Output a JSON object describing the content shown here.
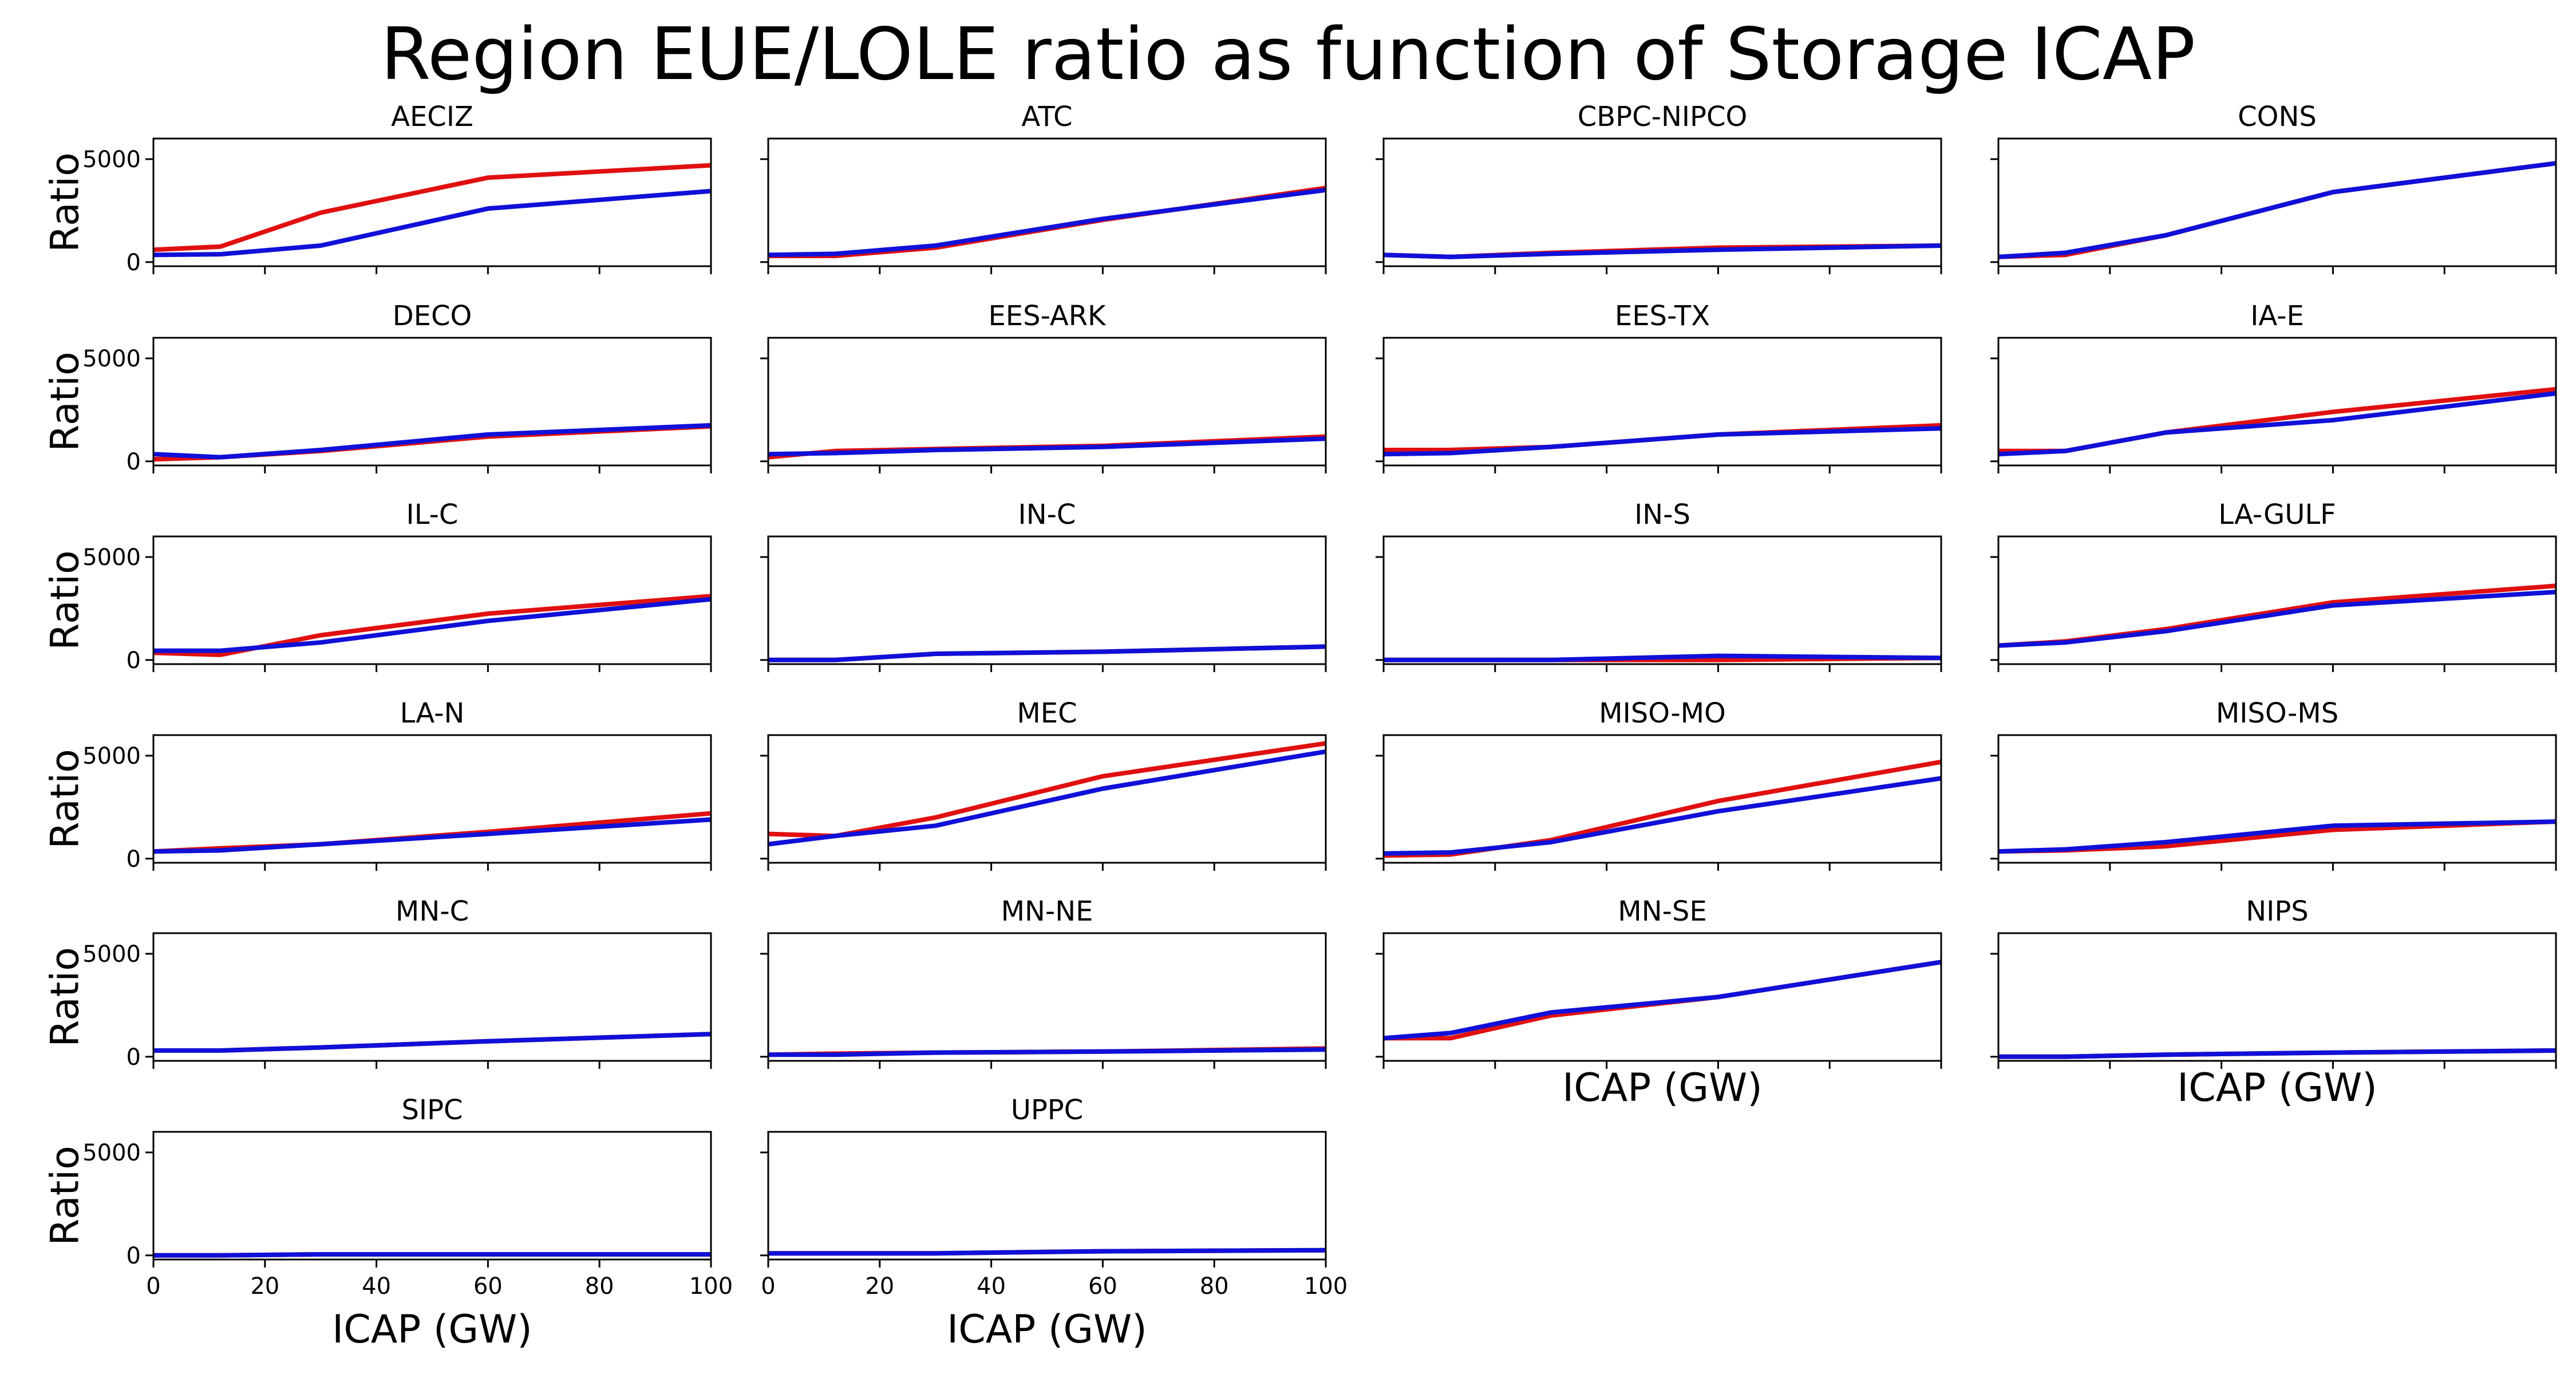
{
  "figure": {
    "title": "Region EUE/LOLE ratio as function of Storage ICAP"
  },
  "colors": {
    "series_a": "#e01010",
    "series_b": "#1010d8"
  },
  "chart_data": {
    "type": "line",
    "title": "Region EUE/LOLE ratio as function of Storage ICAP",
    "xlabel": "ICAP (GW)",
    "ylabel": "Ratio",
    "xlim": [
      0,
      100
    ],
    "ylim": [
      -200,
      6000
    ],
    "x": [
      0,
      12,
      30,
      60,
      100
    ],
    "xticks": [
      "0",
      "20",
      "40",
      "60",
      "80",
      "100"
    ],
    "xtick_values": [
      0,
      20,
      40,
      60,
      80,
      100
    ],
    "yticks": [
      "0",
      "5000"
    ],
    "ytick_values": [
      0,
      5000
    ],
    "grid": false,
    "columns": 4,
    "panels": [
      {
        "name": "AECIZ",
        "red": [
          600,
          750,
          2400,
          4100,
          4700
        ],
        "blue": [
          350,
          380,
          800,
          2600,
          3450
        ]
      },
      {
        "name": "ATC",
        "red": [
          300,
          300,
          700,
          2050,
          3600
        ],
        "blue": [
          350,
          400,
          800,
          2100,
          3500
        ]
      },
      {
        "name": "CBPC-NIPCO",
        "red": [
          350,
          250,
          450,
          700,
          800
        ],
        "blue": [
          350,
          250,
          400,
          600,
          800
        ]
      },
      {
        "name": "CONS",
        "red": [
          250,
          350,
          1300,
          3400,
          4800
        ],
        "blue": [
          250,
          450,
          1300,
          3400,
          4800
        ]
      },
      {
        "name": "DECO",
        "red": [
          100,
          200,
          500,
          1200,
          1700
        ],
        "blue": [
          350,
          200,
          550,
          1300,
          1750
        ]
      },
      {
        "name": "EES-ARK",
        "red": [
          200,
          500,
          600,
          750,
          1200
        ],
        "blue": [
          350,
          400,
          550,
          700,
          1100
        ]
      },
      {
        "name": "EES-TX",
        "red": [
          550,
          550,
          700,
          1300,
          1750
        ],
        "blue": [
          350,
          400,
          700,
          1300,
          1600
        ]
      },
      {
        "name": "IA-E",
        "red": [
          500,
          500,
          1400,
          2400,
          3500
        ],
        "blue": [
          350,
          500,
          1400,
          2000,
          3300
        ]
      },
      {
        "name": "IL-C",
        "red": [
          350,
          250,
          1200,
          2250,
          3100
        ],
        "blue": [
          450,
          450,
          850,
          1900,
          2950
        ]
      },
      {
        "name": "IN-C",
        "red": [
          0,
          0,
          300,
          400,
          650
        ],
        "blue": [
          0,
          0,
          300,
          400,
          650
        ]
      },
      {
        "name": "IN-S",
        "red": [
          0,
          0,
          0,
          0,
          100
        ],
        "blue": [
          0,
          0,
          0,
          200,
          100
        ]
      },
      {
        "name": "LA-GULF",
        "red": [
          700,
          900,
          1500,
          2800,
          3600
        ],
        "blue": [
          700,
          850,
          1400,
          2650,
          3300
        ]
      },
      {
        "name": "LA-N",
        "red": [
          350,
          500,
          700,
          1300,
          2200
        ],
        "blue": [
          350,
          400,
          700,
          1200,
          1900
        ]
      },
      {
        "name": "MEC",
        "red": [
          1200,
          1100,
          2000,
          4000,
          5600
        ],
        "blue": [
          700,
          1100,
          1600,
          3400,
          5200
        ]
      },
      {
        "name": "MISO-MO",
        "red": [
          150,
          200,
          900,
          2800,
          4700
        ],
        "blue": [
          250,
          300,
          800,
          2300,
          3900
        ]
      },
      {
        "name": "MISO-MS",
        "red": [
          350,
          400,
          600,
          1400,
          1800
        ],
        "blue": [
          350,
          450,
          800,
          1600,
          1800
        ]
      },
      {
        "name": "MN-C",
        "red": [
          300,
          300,
          450,
          750,
          1100
        ],
        "blue": [
          300,
          300,
          450,
          750,
          1100
        ]
      },
      {
        "name": "MN-NE",
        "red": [
          100,
          150,
          200,
          250,
          400
        ],
        "blue": [
          100,
          100,
          200,
          250,
          350
        ]
      },
      {
        "name": "MN-SE",
        "red": [
          900,
          900,
          2000,
          2900,
          4600
        ],
        "blue": [
          900,
          1150,
          2150,
          2900,
          4600
        ]
      },
      {
        "name": "NIPS",
        "red": [
          0,
          0,
          100,
          200,
          300
        ],
        "blue": [
          0,
          0,
          100,
          200,
          300
        ]
      },
      {
        "name": "SIPC",
        "red": [
          0,
          0,
          50,
          50,
          50
        ],
        "blue": [
          0,
          0,
          50,
          50,
          50
        ]
      },
      {
        "name": "UPPC",
        "red": [
          100,
          100,
          100,
          200,
          250
        ],
        "blue": [
          100,
          100,
          100,
          200,
          250
        ]
      }
    ]
  }
}
